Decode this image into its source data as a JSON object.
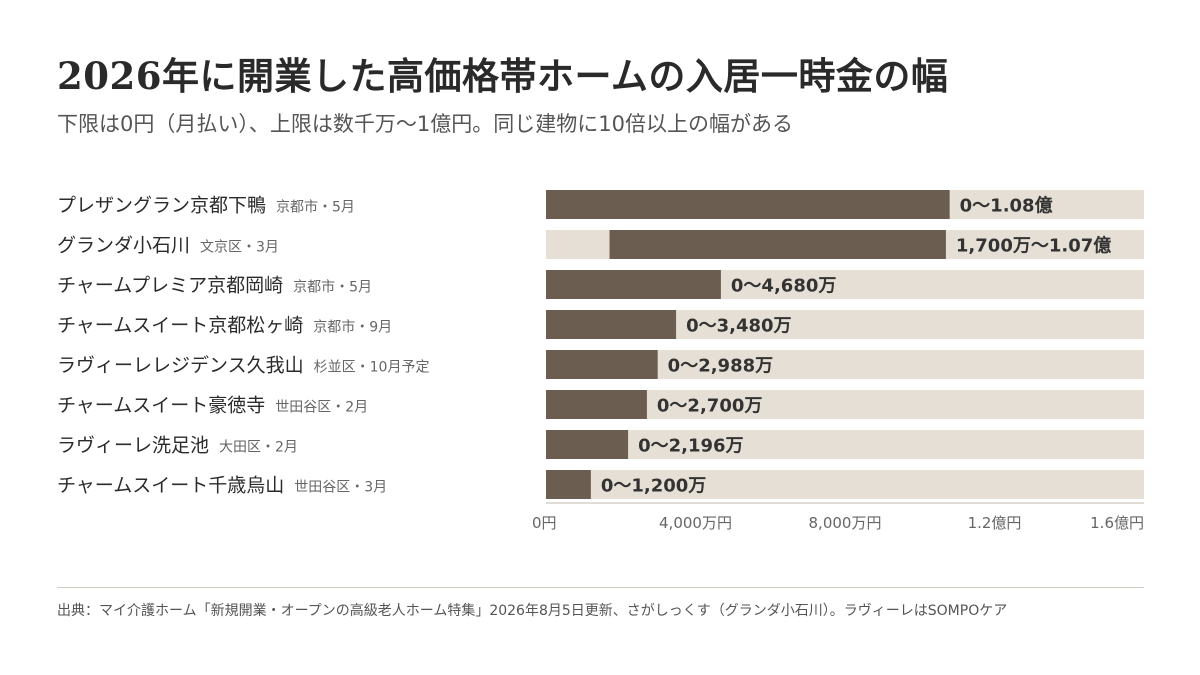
{
  "title": "2026年に開業した高価格帯ホームの入居一時金の幅",
  "subtitle": "下限は0円（月払い）、上限は数千万〜1億円。同じ建物に10倍以上の幅がある",
  "source": "出典：マイ介護ホーム「新規開業・オープンの高級老人ホーム特集」2026年8月5日更新、さがしっくす（グランダ小石川）。ラヴィーレはSOMPOケア",
  "colors": {
    "bar": "#6b5d4f",
    "track": "#e6dfd5",
    "axis": "#bfb8ae",
    "text": "#2b2b2b",
    "muted": "#666666"
  },
  "chart_data": {
    "type": "bar",
    "orientation": "horizontal",
    "unit": "万円",
    "xlim": [
      0,
      16000
    ],
    "xticks": [
      0,
      4000,
      8000,
      12000,
      16000
    ],
    "xtick_labels": [
      "0円",
      "4,000万円",
      "8,000万円",
      "1.2億円",
      "1.6億円"
    ],
    "grid": false,
    "items": [
      {
        "name": "プレザングラン京都下鴨",
        "meta": "京都市・5月",
        "low": 0,
        "high": 10800,
        "label": "0〜1.08億"
      },
      {
        "name": "グランダ小石川",
        "meta": "文京区・3月",
        "low": 1700,
        "high": 10700,
        "label": "1,700万〜1.07億"
      },
      {
        "name": "チャームプレミア京都岡崎",
        "meta": "京都市・5月",
        "low": 0,
        "high": 4680,
        "label": "0〜4,680万"
      },
      {
        "name": "チャームスイート京都松ヶ崎",
        "meta": "京都市・9月",
        "low": 0,
        "high": 3480,
        "label": "0〜3,480万"
      },
      {
        "name": "ラヴィーレレジデンス久我山",
        "meta": "杉並区・10月予定",
        "low": 0,
        "high": 2988,
        "label": "0〜2,988万"
      },
      {
        "name": "チャームスイート豪徳寺",
        "meta": "世田谷区・2月",
        "low": 0,
        "high": 2700,
        "label": "0〜2,700万"
      },
      {
        "name": "ラヴィーレ洗足池",
        "meta": "大田区・2月",
        "low": 0,
        "high": 2196,
        "label": "0〜2,196万"
      },
      {
        "name": "チャームスイート千歳烏山",
        "meta": "世田谷区・3月",
        "low": 0,
        "high": 1200,
        "label": "0〜1,200万"
      }
    ]
  }
}
